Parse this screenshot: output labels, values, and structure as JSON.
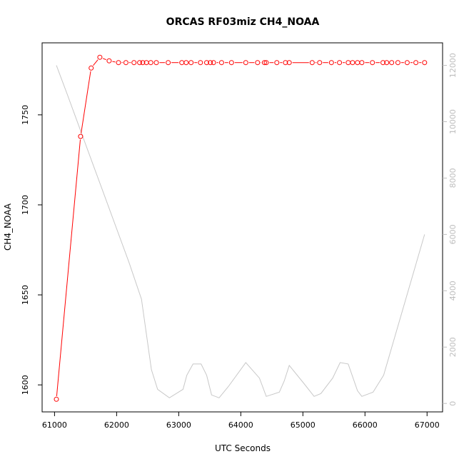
{
  "chart_data": {
    "type": "line",
    "title": "ORCAS RF03miz CH4_NOAA",
    "xlabel": "UTC Seconds",
    "ylabel": "CH4_NOAA",
    "xlim": [
      60800,
      67250
    ],
    "ylim": [
      1585,
      1790
    ],
    "y2lim": [
      -300,
      12800
    ],
    "x_ticks": [
      61000,
      62000,
      63000,
      64000,
      65000,
      66000,
      67000
    ],
    "y_ticks": [
      1600,
      1650,
      1700,
      1750
    ],
    "y2_ticks": [
      0,
      2000,
      4000,
      6000,
      8000,
      10000,
      12000
    ],
    "colors": {
      "primary": "#ff0000",
      "secondary": "#c8c8c8",
      "secondary_ticks": "#bdbdbd"
    },
    "grid": false,
    "series": [
      {
        "axis": "left",
        "style": "line-with-circles",
        "points": [
          [
            61030,
            1592
          ],
          [
            61420,
            1738
          ],
          [
            61590,
            1776
          ],
          [
            61730,
            1782
          ],
          [
            61880,
            1780
          ],
          [
            62030,
            1779
          ],
          [
            62150,
            1779
          ],
          [
            62280,
            1779
          ],
          [
            62370,
            1779
          ],
          [
            62420,
            1779
          ],
          [
            62480,
            1779
          ],
          [
            62550,
            1779
          ],
          [
            62640,
            1779
          ],
          [
            62830,
            1779
          ],
          [
            63050,
            1779
          ],
          [
            63120,
            1779
          ],
          [
            63200,
            1779
          ],
          [
            63350,
            1779
          ],
          [
            63450,
            1779
          ],
          [
            63510,
            1779
          ],
          [
            63560,
            1779
          ],
          [
            63690,
            1779
          ],
          [
            63850,
            1779
          ],
          [
            64080,
            1779
          ],
          [
            64270,
            1779
          ],
          [
            64380,
            1779
          ],
          [
            64410,
            1779
          ],
          [
            64580,
            1779
          ],
          [
            64720,
            1779
          ],
          [
            64780,
            1779
          ],
          [
            65150,
            1779
          ],
          [
            65270,
            1779
          ],
          [
            65460,
            1779
          ],
          [
            65590,
            1779
          ],
          [
            65730,
            1779
          ],
          [
            65800,
            1779
          ],
          [
            65880,
            1779
          ],
          [
            65950,
            1779
          ],
          [
            66120,
            1779
          ],
          [
            66290,
            1779
          ],
          [
            66350,
            1779
          ],
          [
            66430,
            1779
          ],
          [
            66530,
            1779
          ],
          [
            66680,
            1779
          ],
          [
            66820,
            1779
          ],
          [
            66960,
            1779
          ]
        ]
      },
      {
        "axis": "right",
        "style": "line",
        "points": [
          [
            61030,
            12000
          ],
          [
            61200,
            11000
          ],
          [
            61400,
            9800
          ],
          [
            61600,
            8600
          ],
          [
            61800,
            7400
          ],
          [
            62000,
            6200
          ],
          [
            62200,
            5000
          ],
          [
            62400,
            3700
          ],
          [
            62560,
            1200
          ],
          [
            62660,
            500
          ],
          [
            62850,
            200
          ],
          [
            63070,
            500
          ],
          [
            63130,
            1000
          ],
          [
            63230,
            1400
          ],
          [
            63360,
            1400
          ],
          [
            63450,
            1000
          ],
          [
            63530,
            300
          ],
          [
            63650,
            200
          ],
          [
            63800,
            600
          ],
          [
            64080,
            1450
          ],
          [
            64300,
            900
          ],
          [
            64410,
            250
          ],
          [
            64620,
            400
          ],
          [
            64700,
            800
          ],
          [
            64780,
            1350
          ],
          [
            65020,
            700
          ],
          [
            65180,
            250
          ],
          [
            65290,
            350
          ],
          [
            65480,
            900
          ],
          [
            65600,
            1450
          ],
          [
            65730,
            1400
          ],
          [
            65880,
            450
          ],
          [
            65950,
            250
          ],
          [
            66130,
            400
          ],
          [
            66300,
            1000
          ],
          [
            66960,
            6000
          ]
        ]
      }
    ]
  }
}
